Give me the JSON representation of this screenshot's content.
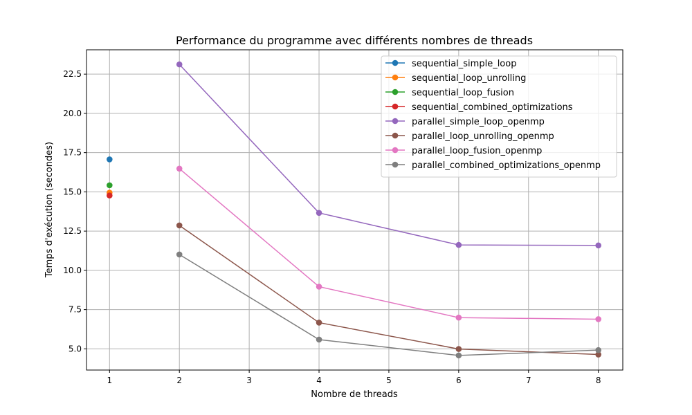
{
  "chart_data": {
    "type": "line",
    "title": "Performance du programme avec différents nombres de threads",
    "xlabel": "Nombre de threads",
    "ylabel": "Temps d'exécution (secondes)",
    "x_ticks": [
      1,
      2,
      3,
      4,
      5,
      6,
      7,
      8
    ],
    "y_ticks": [
      "5.0",
      "7.5",
      "10.0",
      "12.5",
      "15.0",
      "17.5",
      "20.0",
      "22.5"
    ],
    "xlim": [
      0.67,
      8.35
    ],
    "ylim": [
      3.65,
      24.05
    ],
    "grid": true,
    "legend_position": "top-right",
    "series": [
      {
        "name": "sequential_simple_loop",
        "color": "#1f77b4",
        "x": [
          1
        ],
        "y": [
          17.07
        ]
      },
      {
        "name": "sequential_loop_unrolling",
        "color": "#ff7f0e",
        "x": [
          1
        ],
        "y": [
          14.95
        ]
      },
      {
        "name": "sequential_loop_fusion",
        "color": "#2ca02c",
        "x": [
          1
        ],
        "y": [
          15.42
        ]
      },
      {
        "name": "sequential_combined_optimizations",
        "color": "#d62728",
        "x": [
          1
        ],
        "y": [
          14.77
        ]
      },
      {
        "name": "parallel_simple_loop_openmp",
        "color": "#9467bd",
        "x": [
          2,
          4,
          6,
          8
        ],
        "y": [
          23.12,
          13.66,
          11.62,
          11.59
        ]
      },
      {
        "name": "parallel_loop_unrolling_openmp",
        "color": "#8c564b",
        "x": [
          2,
          4,
          6,
          8
        ],
        "y": [
          12.86,
          6.67,
          4.99,
          4.64
        ]
      },
      {
        "name": "parallel_loop_fusion_openmp",
        "color": "#e377c2",
        "x": [
          2,
          4,
          6,
          8
        ],
        "y": [
          16.48,
          8.96,
          6.99,
          6.89
        ]
      },
      {
        "name": "parallel_combined_optimizations_openmp",
        "color": "#7f7f7f",
        "x": [
          2,
          4,
          6,
          8
        ],
        "y": [
          11.01,
          5.59,
          4.58,
          4.92
        ]
      }
    ]
  }
}
